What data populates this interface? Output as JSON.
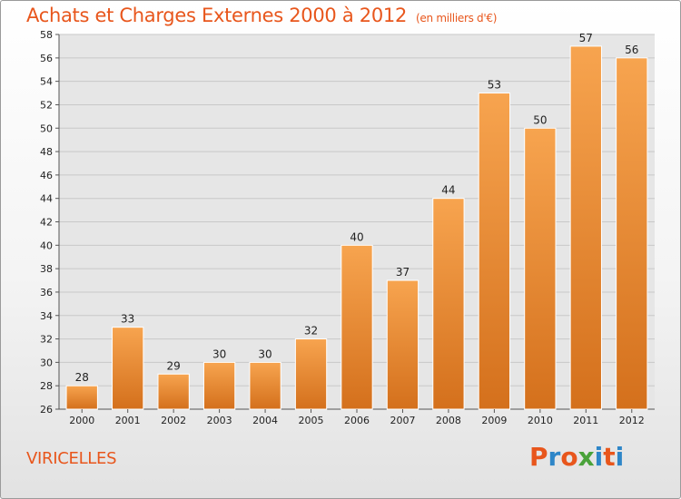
{
  "chart_data": {
    "type": "bar",
    "title": "Achats et Charges Externes 2000 à 2012",
    "subtitle": "(en milliers d'€)",
    "categories": [
      "2000",
      "2001",
      "2002",
      "2003",
      "2004",
      "2005",
      "2006",
      "2007",
      "2008",
      "2009",
      "2010",
      "2011",
      "2012"
    ],
    "values": [
      28,
      33,
      29,
      30,
      30,
      32,
      40,
      37,
      44,
      53,
      50,
      57,
      56
    ],
    "ylim": [
      26,
      58
    ],
    "yticks": [
      26,
      28,
      30,
      32,
      34,
      36,
      38,
      40,
      42,
      44,
      46,
      48,
      50,
      52,
      54,
      56,
      58
    ],
    "grid": true,
    "bar_color_top": "#f7a44f",
    "bar_color_bottom": "#d4701c"
  },
  "location": "VIRICELLES",
  "logo": {
    "text": "Proxiti",
    "colors": [
      "#e8561c",
      "#2e86c8",
      "#e8561c",
      "#4aa23a",
      "#2e86c8",
      "#e8561c",
      "#2e86c8"
    ]
  }
}
